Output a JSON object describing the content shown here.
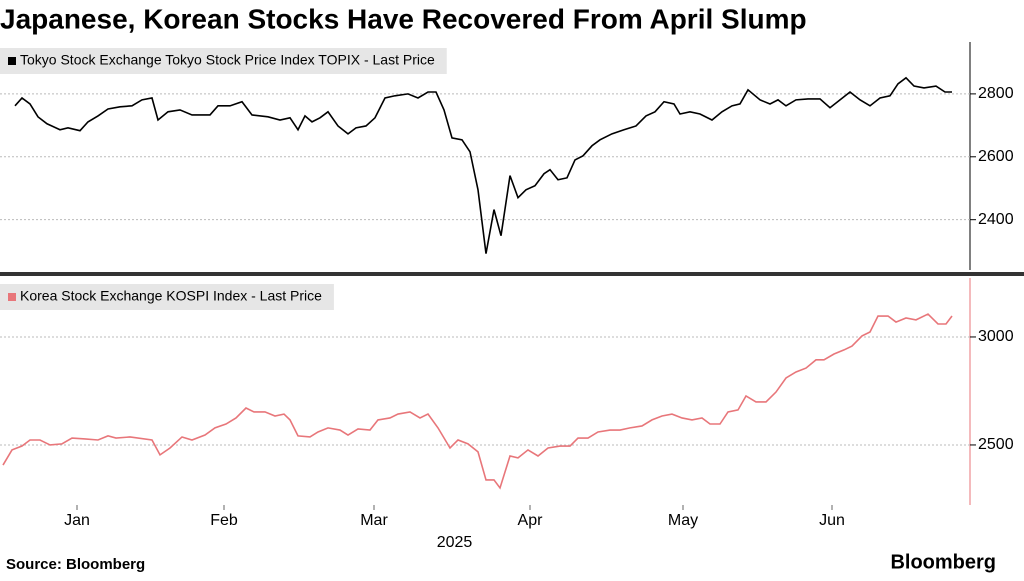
{
  "header": {
    "title": "Japanese, Korean Stocks Have Recovered From April Slump"
  },
  "footer": {
    "source": "Source: Bloomberg",
    "brand": "Bloomberg"
  },
  "chart_data": [
    {
      "type": "line",
      "x": [
        2.4,
        3.8,
        5.4,
        7,
        8.8,
        11.4,
        13,
        15.4,
        17,
        19,
        21,
        23.4,
        25.8,
        27.8,
        29.8,
        31,
        33,
        35.4,
        37.8,
        41.4,
        43,
        45.4,
        47.8,
        49.8,
        53,
        55.4,
        57.4,
        59,
        60.4,
        61.8,
        63.4,
        65,
        67,
        69,
        70.6,
        72.6,
        74.4,
        76.4,
        78.4,
        81,
        83,
        85,
        86.6,
        88.2,
        89.8,
        91.8,
        93.4,
        95,
        96.6,
        98.2,
        99.6,
        101.4,
        103,
        104.6,
        106.4,
        108.2,
        109.4,
        111,
        112.8,
        114.4,
        116,
        117.8,
        119.4,
        121.8,
        124.2,
        126.6,
        128.6,
        130.4,
        132.2,
        134.2,
        135.4,
        137.4,
        139.4,
        141.8,
        143.8,
        145.8,
        147.4,
        149,
        151.4,
        153.4,
        155,
        156.6,
        158.6,
        161,
        163.4,
        165.4,
        167.4,
        169.4,
        171.4,
        173.4,
        175.4,
        177.4,
        179,
        180.6,
        182.2,
        184.2,
        186.6,
        188.4,
        189.8
      ],
      "series": [
        {
          "name": "Tokyo Stock Exchange Tokyo Stock Price Index TOPIX - Last Price",
          "color": "#000000",
          "values": [
            2762,
            2787,
            2768,
            2727,
            2705,
            2686,
            2692,
            2683,
            2711,
            2730,
            2752,
            2759,
            2762,
            2781,
            2787,
            2717,
            2743,
            2749,
            2733,
            2733,
            2762,
            2762,
            2775,
            2733,
            2727,
            2717,
            2724,
            2686,
            2730,
            2711,
            2724,
            2743,
            2698,
            2673,
            2692,
            2698,
            2724,
            2787,
            2794,
            2800,
            2787,
            2806,
            2806,
            2749,
            2660,
            2654,
            2616,
            2495,
            2292,
            2432,
            2349,
            2540,
            2470,
            2495,
            2508,
            2546,
            2559,
            2527,
            2533,
            2590,
            2603,
            2635,
            2654,
            2673,
            2686,
            2698,
            2730,
            2743,
            2775,
            2768,
            2736,
            2743,
            2736,
            2717,
            2743,
            2762,
            2768,
            2813,
            2781,
            2768,
            2781,
            2762,
            2781,
            2784,
            2784,
            2756,
            2781,
            2806,
            2781,
            2762,
            2787,
            2794,
            2832,
            2851,
            2825,
            2819,
            2825,
            2806,
            2806
          ]
        }
      ],
      "xlim": [
        0,
        193.4
      ],
      "ylim": [
        2240,
        2965
      ],
      "yticks": [
        2400,
        2600,
        2800
      ],
      "grid": true
    },
    {
      "type": "line",
      "x": [
        0,
        1.8,
        3.8,
        5.4,
        7.4,
        9.4,
        11.8,
        13.8,
        16.4,
        19,
        21,
        22.6,
        25.4,
        29.8,
        31.4,
        33.4,
        35.8,
        37.8,
        40.4,
        42.4,
        44.6,
        46.6,
        48.6,
        50.2,
        52.4,
        54.4,
        56.2,
        57.4,
        59,
        61.4,
        63,
        65,
        67.4,
        69,
        71,
        73.4,
        75,
        77.4,
        79,
        81.4,
        83.4,
        85,
        87,
        89.4,
        91,
        93,
        95,
        96.6,
        98.2,
        99.4,
        101.4,
        103,
        105,
        107,
        109,
        111.4,
        113.4,
        115,
        117,
        119,
        121.4,
        123.4,
        125.4,
        127.8,
        129.8,
        131.8,
        133.8,
        135.8,
        137.8,
        139.8,
        141.4,
        143.4,
        145,
        147,
        148.6,
        150.6,
        152.6,
        154.6,
        156.6,
        158.6,
        160.6,
        162.6,
        164.2,
        166.2,
        168.2,
        169.8,
        171.8,
        173.4,
        175,
        177,
        178.6,
        180.6,
        182.6,
        185,
        187,
        188.6,
        189.8
      ],
      "series": [
        {
          "name": "Korea Stock Exchange KOSPI Index - Last Price",
          "color": "#e8767a",
          "values": [
            2407,
            2477,
            2495,
            2523,
            2523,
            2500,
            2505,
            2532,
            2528,
            2523,
            2542,
            2532,
            2537,
            2523,
            2454,
            2486,
            2537,
            2523,
            2546,
            2579,
            2597,
            2625,
            2671,
            2653,
            2653,
            2634,
            2643,
            2616,
            2542,
            2537,
            2560,
            2579,
            2569,
            2546,
            2574,
            2569,
            2616,
            2625,
            2643,
            2653,
            2625,
            2643,
            2579,
            2486,
            2523,
            2505,
            2468,
            2338,
            2338,
            2301,
            2449,
            2440,
            2477,
            2449,
            2486,
            2495,
            2495,
            2532,
            2532,
            2560,
            2569,
            2569,
            2579,
            2588,
            2616,
            2634,
            2643,
            2625,
            2616,
            2625,
            2597,
            2597,
            2653,
            2662,
            2727,
            2699,
            2699,
            2745,
            2810,
            2838,
            2856,
            2894,
            2894,
            2921,
            2940,
            2958,
            3005,
            3023,
            3097,
            3097,
            3069,
            3088,
            3079,
            3106,
            3060,
            3060,
            3097
          ]
        }
      ],
      "xlim": [
        0,
        193.4
      ],
      "ylim": [
        2222,
        3273
      ],
      "yticks": [
        2500,
        3000
      ],
      "grid": true,
      "xticks": [
        {
          "value": 14.8,
          "label": "Jan"
        },
        {
          "value": 44.2,
          "label": "Feb"
        },
        {
          "value": 74.2,
          "label": "Mar"
        },
        {
          "value": 105.4,
          "label": "Apr"
        },
        {
          "value": 136,
          "label": "May"
        },
        {
          "value": 165.8,
          "label": "Jun"
        }
      ],
      "xlabel": "2025"
    }
  ]
}
